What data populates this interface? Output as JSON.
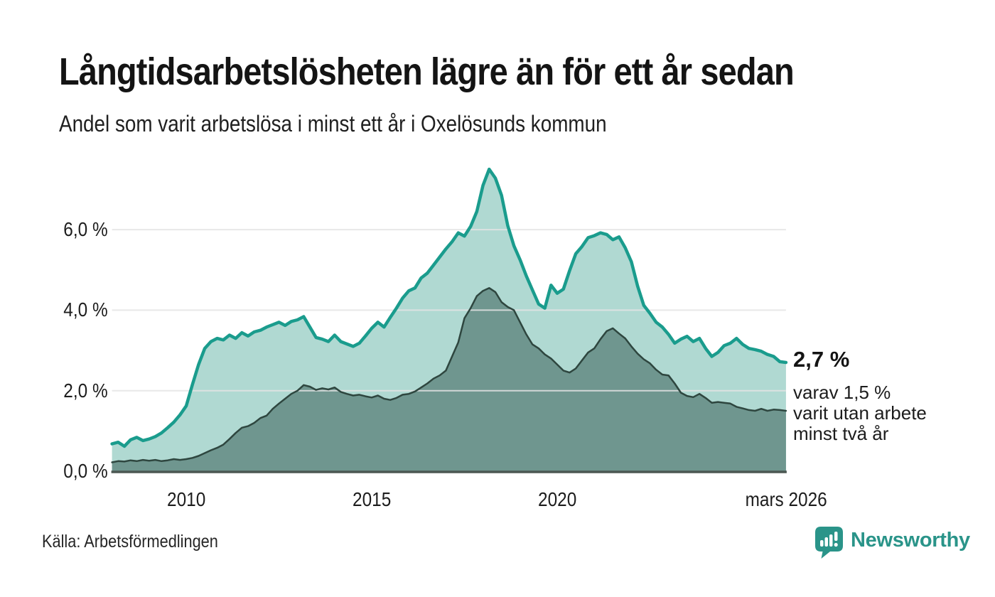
{
  "title": "Långtidsarbetslösheten lägre än för ett år sedan",
  "subtitle": "Andel som varit arbetslösa i minst ett år i Oxelösunds kommun",
  "annotation": {
    "value_label": "2,7 %",
    "detail_lines": [
      "varav 1,5 %",
      "varit utan arbete",
      "minst två år"
    ]
  },
  "source": "Källa: Arbetsförmedlingen",
  "brand": {
    "name": "Newsworthy",
    "color": "#2a9489",
    "logo_icon": "bar-chart-speech-bubble-icon"
  },
  "chart_data": {
    "type": "area",
    "title": "Långtidsarbetslösheten lägre än för ett år sedan",
    "subtitle": "Andel som varit arbetslösa i minst ett år i Oxelösunds kommun",
    "unit": "%",
    "x_start": 2008.0,
    "x_step_years": 0.1666667,
    "x_end_label": "mars 2026",
    "ylim": [
      0,
      7.8
    ],
    "grid": true,
    "x_ticks": [
      {
        "label": "2010",
        "year": 2010
      },
      {
        "label": "2015",
        "year": 2015
      },
      {
        "label": "2020",
        "year": 2020
      },
      {
        "label": "mars 2026",
        "year": 2026.17
      }
    ],
    "y_ticks": [
      {
        "label": "0,0 %",
        "value": 0
      },
      {
        "label": "2,0 %",
        "value": 2
      },
      {
        "label": "4,0 %",
        "value": 4
      },
      {
        "label": "6,0 %",
        "value": 6
      }
    ],
    "gridline_color": "#e4e4e4",
    "axis_line_color": "#4b5752",
    "series": [
      {
        "name": "Arbetslösa minst ett år",
        "line_color": "#1a9c8d",
        "fill_color": "#b0d9d2",
        "line_width": 4.5,
        "end_value_label": "2,7 %",
        "values": [
          0.68,
          0.72,
          0.62,
          0.78,
          0.84,
          0.76,
          0.8,
          0.86,
          0.95,
          1.08,
          1.22,
          1.4,
          1.62,
          2.15,
          2.65,
          3.05,
          3.22,
          3.3,
          3.26,
          3.38,
          3.3,
          3.44,
          3.36,
          3.46,
          3.5,
          3.58,
          3.64,
          3.7,
          3.62,
          3.72,
          3.76,
          3.84,
          3.58,
          3.32,
          3.28,
          3.22,
          3.38,
          3.22,
          3.16,
          3.1,
          3.18,
          3.36,
          3.55,
          3.7,
          3.58,
          3.82,
          4.05,
          4.3,
          4.48,
          4.55,
          4.8,
          4.92,
          5.12,
          5.32,
          5.52,
          5.7,
          5.92,
          5.84,
          6.08,
          6.45,
          7.1,
          7.5,
          7.28,
          6.85,
          6.1,
          5.6,
          5.25,
          4.85,
          4.5,
          4.15,
          4.05,
          4.62,
          4.42,
          4.52,
          4.98,
          5.4,
          5.58,
          5.8,
          5.85,
          5.92,
          5.88,
          5.75,
          5.82,
          5.55,
          5.2,
          4.6,
          4.12,
          3.92,
          3.7,
          3.58,
          3.4,
          3.18,
          3.28,
          3.35,
          3.22,
          3.3,
          3.05,
          2.85,
          2.95,
          3.12,
          3.18,
          3.3,
          3.15,
          3.05,
          3.02,
          2.98,
          2.9,
          2.85,
          2.72,
          2.7
        ]
      },
      {
        "name": "Arbetslösa minst två år",
        "line_color": "#2e463f",
        "fill_color": "#6f968f",
        "line_width": 2.5,
        "end_value_label": "1,5 %",
        "values": [
          0.22,
          0.25,
          0.24,
          0.27,
          0.25,
          0.28,
          0.26,
          0.28,
          0.25,
          0.27,
          0.3,
          0.28,
          0.3,
          0.33,
          0.38,
          0.45,
          0.52,
          0.58,
          0.66,
          0.8,
          0.95,
          1.08,
          1.12,
          1.2,
          1.32,
          1.38,
          1.55,
          1.68,
          1.8,
          1.92,
          2.0,
          2.14,
          2.1,
          2.02,
          2.06,
          2.03,
          2.08,
          1.97,
          1.92,
          1.88,
          1.9,
          1.86,
          1.83,
          1.88,
          1.8,
          1.77,
          1.82,
          1.9,
          1.92,
          1.98,
          2.08,
          2.18,
          2.3,
          2.38,
          2.5,
          2.85,
          3.2,
          3.8,
          4.05,
          4.35,
          4.48,
          4.55,
          4.45,
          4.2,
          4.08,
          4.0,
          3.7,
          3.4,
          3.15,
          3.05,
          2.9,
          2.8,
          2.65,
          2.5,
          2.45,
          2.55,
          2.75,
          2.95,
          3.05,
          3.28,
          3.48,
          3.55,
          3.42,
          3.3,
          3.1,
          2.92,
          2.78,
          2.68,
          2.52,
          2.4,
          2.38,
          2.18,
          1.95,
          1.87,
          1.84,
          1.92,
          1.82,
          1.7,
          1.72,
          1.7,
          1.68,
          1.6,
          1.56,
          1.52,
          1.5,
          1.55,
          1.5,
          1.53,
          1.52,
          1.5
        ]
      }
    ]
  }
}
